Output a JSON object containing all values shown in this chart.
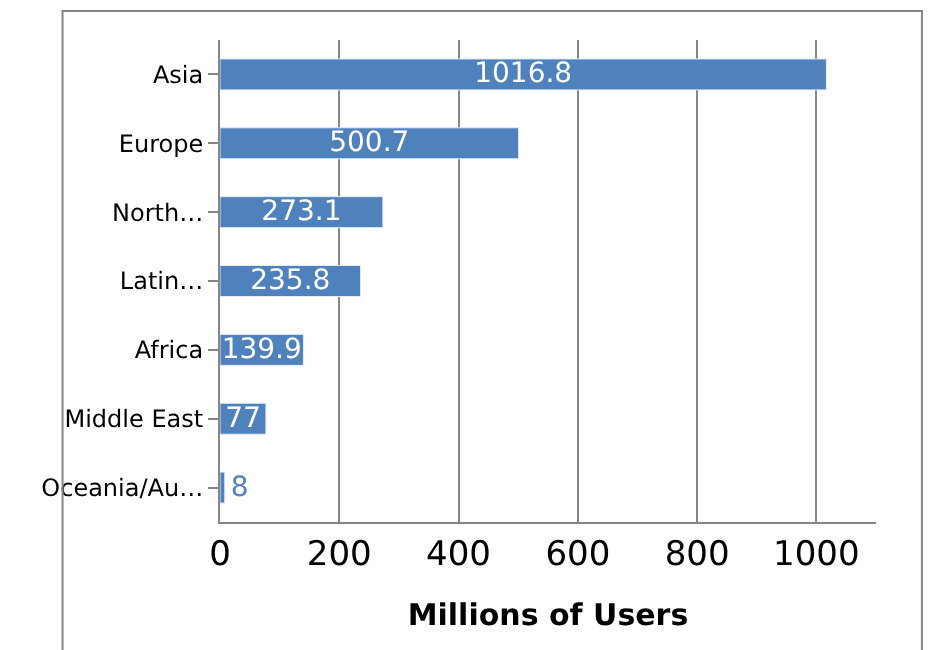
{
  "chart_data": {
    "type": "bar",
    "orientation": "horizontal",
    "xlabel": "Millions of Users",
    "categories": [
      "Asia",
      "Europe",
      "North…",
      "Latin…",
      "Africa",
      "Middle East",
      "Oceania/Au…"
    ],
    "values": [
      1016.8,
      500.7,
      273.1,
      235.8,
      139.9,
      77,
      8
    ],
    "color": "#4f81bd",
    "data_labels": true,
    "grid": "x",
    "xlim": [
      0,
      1100
    ],
    "xticks": [
      0,
      200,
      400,
      600,
      800,
      1000
    ]
  }
}
